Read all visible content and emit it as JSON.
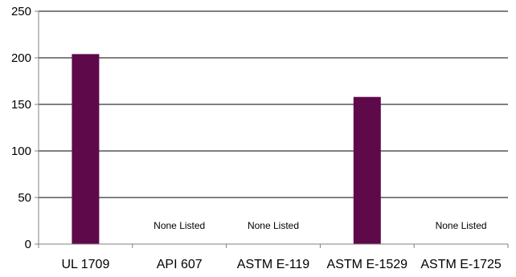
{
  "chart_data": {
    "type": "bar",
    "title": "",
    "xlabel": "",
    "ylabel": "",
    "categories": [
      "UL 1709",
      "API 607",
      "ASTM E-119",
      "ASTM E-1529",
      "ASTM E-1725"
    ],
    "values": [
      204,
      null,
      null,
      158,
      null
    ],
    "data_labels": [
      "",
      "None Listed",
      "None Listed",
      "",
      "None Listed"
    ],
    "ylim": [
      0,
      250
    ],
    "yticks": [
      "0",
      "50",
      "100",
      "150",
      "200",
      "250"
    ],
    "grid": true,
    "legend": "none",
    "colors": {
      "bar": "#5e0a4a",
      "grid": "#000000",
      "axis": "#808080"
    }
  }
}
